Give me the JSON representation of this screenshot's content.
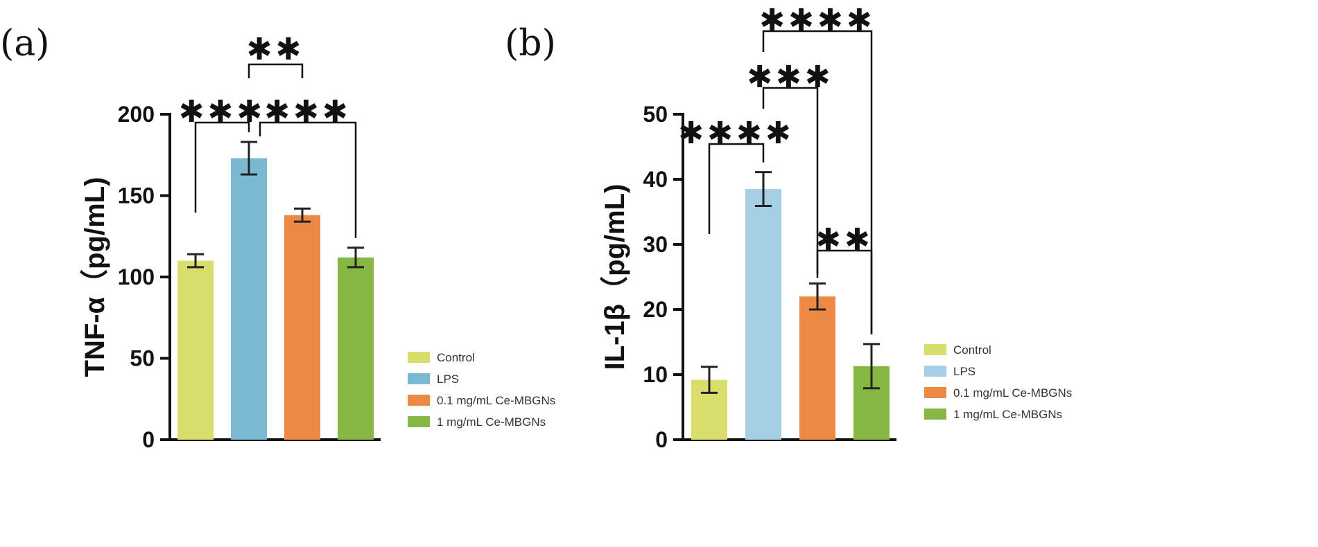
{
  "chart_data": [
    {
      "type": "bar",
      "panel_label": "(a)",
      "categories": [
        "Control",
        "LPS",
        "0.1 mg/mL Ce-MBGNs",
        "1 mg/mL Ce-MBGNs"
      ],
      "values": [
        110,
        173,
        138,
        112
      ],
      "errors": [
        4,
        10,
        4,
        6
      ],
      "colors": [
        "#d9de6b",
        "#7ab8d3",
        "#ec8a45",
        "#87b743"
      ],
      "ylabel": "TNF-α（pg/mL)",
      "ylim": [
        0,
        200
      ],
      "yticks": [
        0,
        50,
        100,
        150,
        200
      ],
      "legend": {
        "entries": [
          "Control",
          "LPS",
          "0.1 mg/mL Ce-MBGNs",
          "1 mg/mL Ce-MBGNs"
        ],
        "placement": "right"
      },
      "grid": false,
      "significance": [
        {
          "from": 0,
          "to": 1,
          "label": "***"
        },
        {
          "from": 1,
          "to": 2,
          "label": "**"
        },
        {
          "from": 1,
          "to": 3,
          "label": "***"
        }
      ]
    },
    {
      "type": "bar",
      "panel_label": "(b)",
      "categories": [
        "Control",
        "LPS",
        "0.1 mg/mL Ce-MBGNs",
        "1 mg/mL Ce-MBGNs"
      ],
      "values": [
        9.2,
        38.5,
        22,
        11.3
      ],
      "errors": [
        2.0,
        2.6,
        2.0,
        3.4
      ],
      "colors": [
        "#d9de6b",
        "#a4cfe4",
        "#ec8a45",
        "#87b743"
      ],
      "ylabel": "IL-1β（pg/mL)",
      "ylim": [
        0,
        50
      ],
      "yticks": [
        0,
        10,
        20,
        30,
        40,
        50
      ],
      "legend": {
        "entries": [
          "Control",
          "LPS",
          "0.1 mg/mL Ce-MBGNs",
          "1 mg/mL Ce-MBGNs"
        ],
        "placement": "right"
      },
      "grid": false,
      "significance": [
        {
          "from": 0,
          "to": 1,
          "label": "****"
        },
        {
          "from": 1,
          "to": 2,
          "label": "***"
        },
        {
          "from": 1,
          "to": 3,
          "label": "****"
        },
        {
          "from": 2,
          "to": 3,
          "label": "**"
        }
      ]
    }
  ]
}
